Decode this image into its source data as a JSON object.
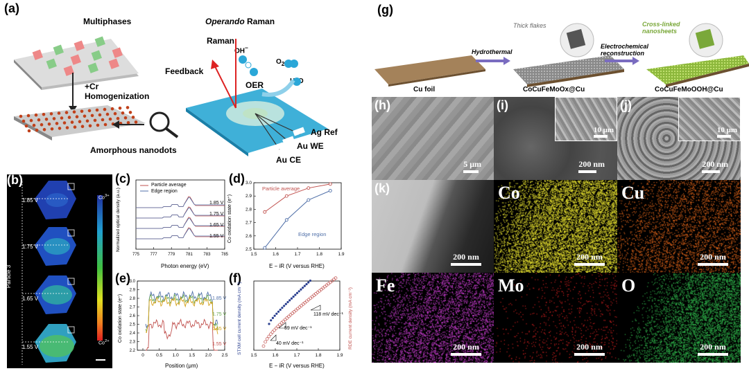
{
  "panel_a": {
    "label": "(a)",
    "multiphases": "Multiphases",
    "homog_line1": "+Cr",
    "homog_line2": "Homogenization",
    "amorphous": "Amorphous nanodots",
    "operando_italic": "Operando",
    "operando_rest": " Raman",
    "raman": "Raman",
    "feedback": "Feedback",
    "oer": "OER",
    "oh": "OH",
    "o2": "O",
    "h2o": "H",
    "ag_ref": "Ag Ref",
    "au_we": "Au WE",
    "au_ce": "Au CE"
  },
  "panel_b": {
    "label": "(b)",
    "particle": "Particle 3",
    "voltages": [
      "1.85 V",
      "1.75 V",
      "1.65 V",
      "1.55 V"
    ],
    "cbar_top": "Co",
    "cbar_bottom": "Co",
    "cbar_top_sup": "3+",
    "cbar_bottom_sup": "2+"
  },
  "panel_c": {
    "label": "(c)",
    "xlabel": "Photon energy (eV)",
    "ylabel": "Normalized optical density (a.u.)",
    "legend": [
      "Particle average",
      "Edge region"
    ],
    "xticks": [
      "775",
      "777",
      "779",
      "781",
      "783",
      "785"
    ],
    "curve_labels": [
      "1.85 V",
      "1.75 V",
      "1.65 V",
      "1.55 V"
    ],
    "colors": {
      "avg": "#c0504d",
      "edge": "#4f6fa8"
    }
  },
  "panel_d": {
    "label": "(d)",
    "xlabel": "E − iR (V versus RHE)",
    "ylabel": "Co oxidation state (e⁺)",
    "legend_avg": "Particle average",
    "legend_edge": "Edge region",
    "xticks": [
      "1.5",
      "1.6",
      "1.7",
      "1.8",
      "1.9"
    ],
    "yticks": [
      "2.5",
      "2.6",
      "2.7",
      "2.8",
      "2.9",
      "3.0"
    ],
    "chart_data": {
      "type": "line",
      "x": [
        1.55,
        1.65,
        1.75,
        1.85
      ],
      "series": [
        {
          "name": "Particle average",
          "values": [
            2.78,
            2.9,
            2.96,
            2.99
          ]
        },
        {
          "name": "Edge region",
          "values": [
            2.51,
            2.72,
            2.87,
            2.94
          ]
        }
      ],
      "xlim": [
        1.5,
        1.9
      ],
      "ylim": [
        2.5,
        3.0
      ]
    }
  },
  "panel_e": {
    "label": "(e)",
    "xlabel": "Position (μm)",
    "ylabel": "Co oxidation state (e⁺)",
    "xticks": [
      "0",
      "0.5",
      "1.0",
      "1.5",
      "2.0",
      "2.5"
    ],
    "yticks": [
      "2.2",
      "2.3",
      "2.4",
      "2.5",
      "2.6",
      "2.7",
      "2.8",
      "2.9",
      "3.0"
    ],
    "series_labels": [
      "1.85 V",
      "1.75 V",
      "1.65 V",
      "1.55 V"
    ],
    "colors": [
      "#4f6fa8",
      "#6aa84f",
      "#d4a017",
      "#c0504d"
    ]
  },
  "panel_f": {
    "label": "(f)",
    "xlabel": "E − iR (V versus RHE)",
    "ylabel_left": "STXM cell current density (mA cm⁻²)",
    "ylabel_right": "RDE current density (mA cm⁻²)",
    "xticks": [
      "1.5",
      "1.6",
      "1.7",
      "1.8",
      "1.9"
    ],
    "slope_118": "118 mV dec⁻¹",
    "slope_59": "59 mV dec⁻¹",
    "slope_40": "40 mV dec⁻¹"
  },
  "panel_g": {
    "label": "(g)",
    "thick_flakes": "Thick flakes",
    "cross_linked_1": "Cross-linked",
    "cross_linked_2": "nanosheets",
    "hydrothermal": "Hydrothermal",
    "electrochem_1": "Electrochemical",
    "electrochem_2": "reconstruction",
    "cu_foil": "Cu foil",
    "mid": "CoCuFeMoOx@Cu",
    "right": "CoCuFeMoOOH@Cu"
  },
  "sem": {
    "h": {
      "label": "(h)",
      "scale": "5 μm"
    },
    "i": {
      "label": "(i)",
      "scale": "200 nm",
      "inset_scale": "10 μm"
    },
    "j": {
      "label": "(j)",
      "scale": "200 nm",
      "inset_scale": "10 μm"
    }
  },
  "maps": {
    "k": {
      "label": "(k)",
      "scale": "200 nm"
    },
    "co": {
      "label": "Co",
      "scale": "200 nm",
      "color": "#e6e030"
    },
    "cu": {
      "label": "Cu",
      "scale": "200 nm",
      "color": "#e0651a"
    },
    "fe": {
      "label": "Fe",
      "scale": "200 nm",
      "color": "#c43ccc"
    },
    "mo": {
      "label": "Mo",
      "scale": "200 nm",
      "color": "#d02020"
    },
    "o": {
      "label": "O",
      "scale": "200 nm",
      "color": "#2fb04a"
    }
  }
}
